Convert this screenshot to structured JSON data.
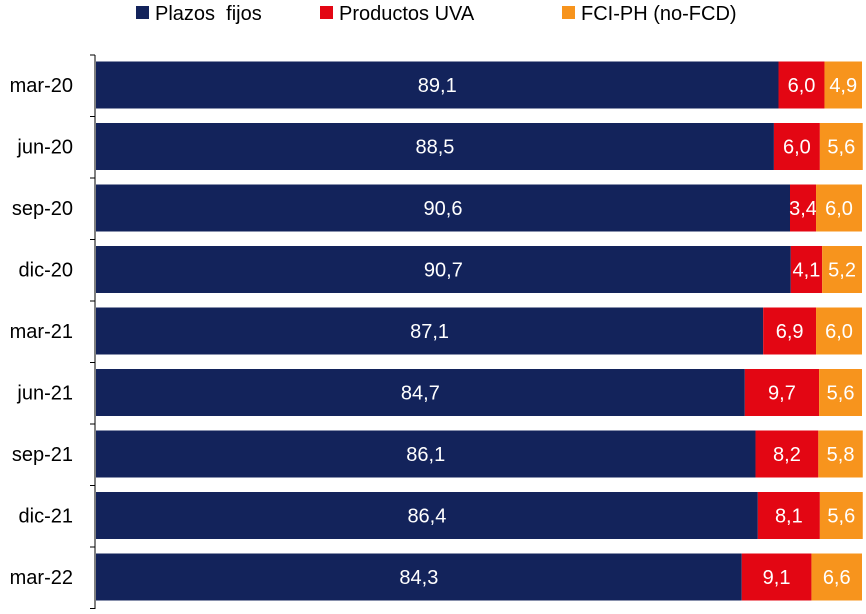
{
  "chart_data": {
    "type": "bar",
    "orientation": "horizontal",
    "stacked": true,
    "title": "",
    "xlabel": "",
    "ylabel": "",
    "xlim": [
      0,
      100
    ],
    "grid": false,
    "legend_position": "top",
    "categories": [
      "mar-20",
      "jun-20",
      "sep-20",
      "dic-20",
      "mar-21",
      "jun-21",
      "sep-21",
      "dic-21",
      "mar-22"
    ],
    "series": [
      {
        "name": "Plazos  fijos",
        "color": "#13235B",
        "values": [
          89.1,
          88.5,
          90.6,
          90.7,
          87.1,
          84.7,
          86.1,
          86.4,
          84.3
        ],
        "labels": [
          "89,1",
          "88,5",
          "90,6",
          "90,7",
          "87,1",
          "84,7",
          "86,1",
          "86,4",
          "84,3"
        ]
      },
      {
        "name": "Productos UVA",
        "color": "#E30613",
        "values": [
          6.0,
          6.0,
          3.4,
          4.1,
          6.9,
          9.7,
          8.2,
          8.1,
          9.1
        ],
        "labels": [
          "6,0",
          "6,0",
          "3,4",
          "4,1",
          "6,9",
          "9,7",
          "8,2",
          "8,1",
          "9,1"
        ]
      },
      {
        "name": "FCI-PH (no-FCD)",
        "color": "#F7941D",
        "values": [
          4.9,
          5.6,
          6.0,
          5.2,
          6.0,
          5.6,
          5.8,
          5.6,
          6.6
        ],
        "labels": [
          "4,9",
          "5,6",
          "6,0",
          "5,2",
          "6,0",
          "5,6",
          "5,8",
          "5,6",
          "6,6"
        ]
      }
    ]
  }
}
